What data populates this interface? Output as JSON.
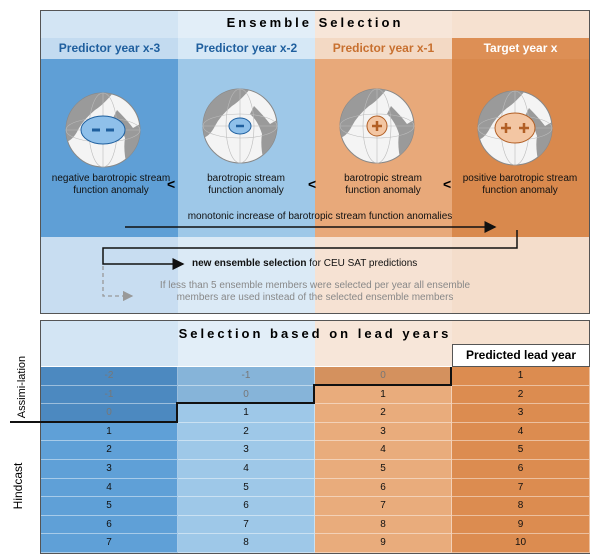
{
  "header": {
    "title": "Ensemble Selection"
  },
  "columns": [
    {
      "label": "Predictor year x-3",
      "description": "negative barotropic stream function anomaly"
    },
    {
      "label": "Predictor year x-2",
      "description": "barotropic stream function anomaly"
    },
    {
      "label": "Predictor year x-1",
      "description": "barotropic stream function anomaly"
    },
    {
      "label": "Target year x",
      "description": "positive barotropic stream function anomaly"
    }
  ],
  "comparators": [
    "<",
    "<",
    "<"
  ],
  "trend": "monotonic increase of barotropic stream function anomalies",
  "selection": {
    "bold": "new ensemble selection",
    "rest": "for CEU SAT predictions"
  },
  "note": "If less than 5 ensemble members were selected per year all ensemble members are used instead of the selected ensemble members",
  "table": {
    "title": "Selection based on lead years",
    "header": "Predicted lead year",
    "side_labels": {
      "assimilation": "Assimi-lation",
      "hindcast": "Hindcast"
    },
    "rows": [
      [
        -2,
        -1,
        0,
        1
      ],
      [
        -1,
        0,
        1,
        2
      ],
      [
        0,
        1,
        2,
        3
      ],
      [
        1,
        2,
        3,
        4
      ],
      [
        2,
        3,
        4,
        5
      ],
      [
        3,
        4,
        5,
        6
      ],
      [
        4,
        5,
        6,
        7
      ],
      [
        5,
        6,
        7,
        8
      ],
      [
        6,
        7,
        8,
        9
      ],
      [
        7,
        8,
        9,
        10
      ]
    ]
  }
}
